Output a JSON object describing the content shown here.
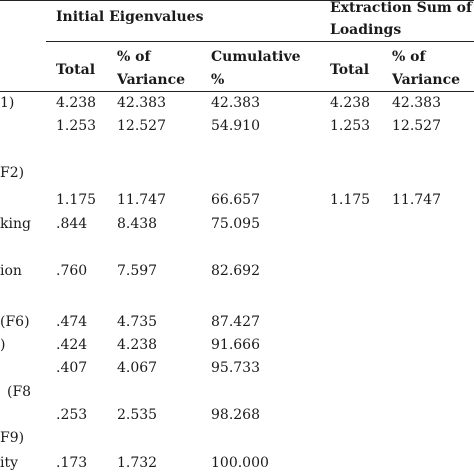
{
  "table": {
    "group_headers": {
      "initial": "Initial Eigenvalues",
      "extraction_line1": "Extraction Sum of",
      "extraction_line2": "Loadings"
    },
    "columns": {
      "initial_total": "Total",
      "initial_pct_line1": "% of",
      "initial_pct_line2": "Variance",
      "initial_cum_line1": "Cumulative",
      "initial_cum_line2": "%",
      "extraction_total": "Total",
      "extraction_pct_line1": "% of",
      "extraction_pct_line2": "Variance"
    },
    "row_label_fragments": [
      "1)",
      "F2)",
      "king",
      "ion",
      "(F6)",
      ")",
      "(F8",
      "F9)",
      "ity"
    ],
    "rows": [
      {
        "total": "4.238",
        "pct": "42.383",
        "cum": "42.383",
        "ext_total": "4.238",
        "ext_pct": "42.383"
      },
      {
        "total": "1.253",
        "pct": "12.527",
        "cum": "54.910",
        "ext_total": "1.253",
        "ext_pct": "12.527"
      },
      {
        "total": "1.175",
        "pct": "11.747",
        "cum": "66.657",
        "ext_total": "1.175",
        "ext_pct": "11.747"
      },
      {
        "total": ".844",
        "pct": "8.438",
        "cum": "75.095"
      },
      {
        "total": ".760",
        "pct": "7.597",
        "cum": "82.692"
      },
      {
        "total": ".474",
        "pct": "4.735",
        "cum": "87.427"
      },
      {
        "total": ".424",
        "pct": "4.238",
        "cum": "91.666"
      },
      {
        "total": ".407",
        "pct": "4.067",
        "cum": "95.733"
      },
      {
        "total": ".253",
        "pct": "2.535",
        "cum": "98.268"
      },
      {
        "total": ".173",
        "pct": "1.732",
        "cum": "100.000"
      }
    ]
  }
}
